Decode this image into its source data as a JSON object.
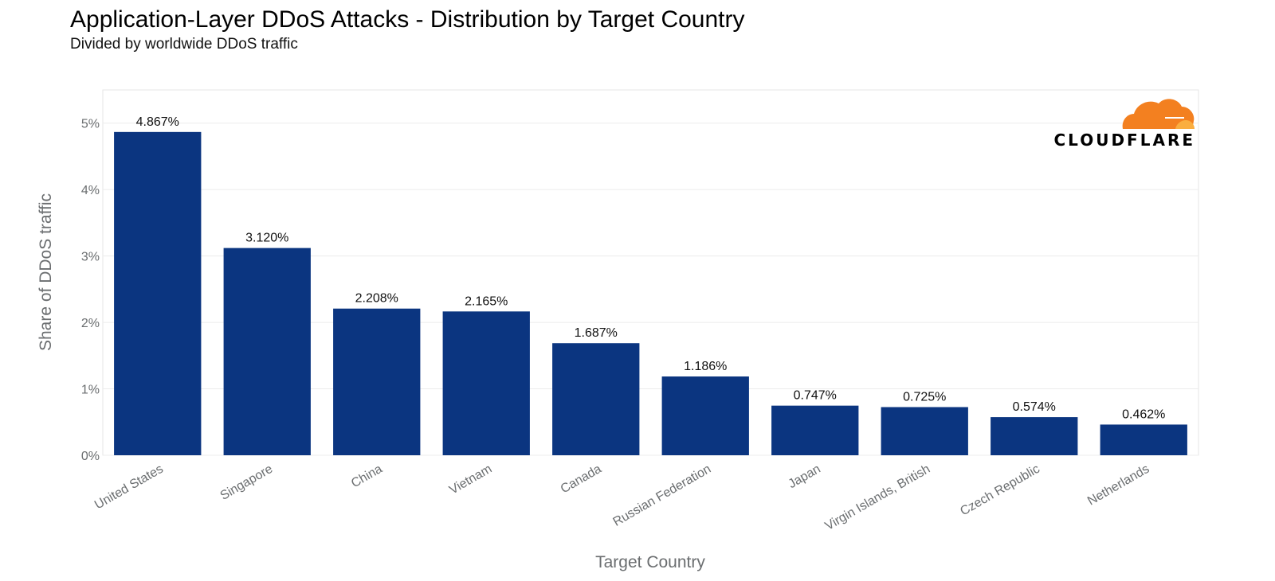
{
  "title": "Application-Layer DDoS Attacks - Distribution by Target Country",
  "subtitle": "Divided by worldwide DDoS traffic",
  "logo": {
    "text": "CLOUDFLARE",
    "icon": "cloudflare-cloud-icon",
    "color": "#f38020"
  },
  "colors": {
    "bar": "#0b3580",
    "grid": "#ececec",
    "axis_text": "#6b6e70",
    "label_text": "#111111",
    "panel_border": "#e6e6e6"
  },
  "chart_data": {
    "type": "bar",
    "title": "Application-Layer DDoS Attacks - Distribution by Target Country",
    "subtitle": "Divided by worldwide DDoS traffic",
    "xlabel": "Target Country",
    "ylabel": "Share of DDoS traffic",
    "ylim": [
      0,
      5.5
    ],
    "yticks": [
      0,
      1,
      2,
      3,
      4,
      5
    ],
    "ytick_labels": [
      "0%",
      "1%",
      "2%",
      "3%",
      "4%",
      "5%"
    ],
    "grid": true,
    "categories": [
      "United States",
      "Singapore",
      "China",
      "Vietnam",
      "Canada",
      "Russian Federation",
      "Japan",
      "Virgin Islands, British",
      "Czech Republic",
      "Netherlands"
    ],
    "values": [
      4.867,
      3.12,
      2.208,
      2.165,
      1.687,
      1.186,
      0.747,
      0.725,
      0.574,
      0.462
    ],
    "data_labels": [
      "4.867%",
      "3.120%",
      "2.208%",
      "2.165%",
      "1.687%",
      "1.186%",
      "0.747%",
      "0.725%",
      "0.574%",
      "0.462%"
    ]
  }
}
